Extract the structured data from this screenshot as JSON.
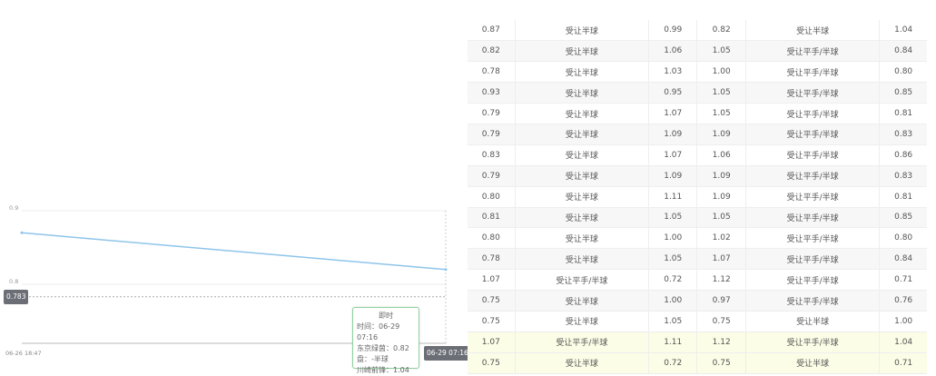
{
  "chart_data": {
    "type": "line",
    "x": [
      "06-26 18:47",
      "06-29 07:16"
    ],
    "values": [
      0.87,
      0.82
    ],
    "ylim": [
      0.75,
      0.9
    ],
    "yticks": [
      "0.9",
      "0.8"
    ],
    "xticks": [
      "06-26 18:47"
    ],
    "reference_line": "0.783",
    "cursor_x_label": "06-29 07:16",
    "line_color": "#8ec5ea",
    "grid": true,
    "tooltip": {
      "title": "即时",
      "lines": [
        "时间：06-29 07:16",
        "东京绿茵：0.82",
        "盘：-半球",
        "川崎前锋：1.04"
      ]
    }
  },
  "table": {
    "rows": [
      [
        "0.87",
        "受让半球",
        "0.99",
        "0.82",
        "受让半球",
        "1.04"
      ],
      [
        "0.82",
        "受让半球",
        "1.06",
        "1.05",
        "受让平手/半球",
        "0.84"
      ],
      [
        "0.78",
        "受让半球",
        "1.03",
        "1.00",
        "受让平手/半球",
        "0.80"
      ],
      [
        "0.93",
        "受让半球",
        "0.95",
        "1.05",
        "受让平手/半球",
        "0.85"
      ],
      [
        "0.79",
        "受让半球",
        "1.07",
        "1.05",
        "受让平手/半球",
        "0.81"
      ],
      [
        "0.79",
        "受让半球",
        "1.09",
        "1.09",
        "受让平手/半球",
        "0.83"
      ],
      [
        "0.83",
        "受让半球",
        "1.07",
        "1.06",
        "受让平手/半球",
        "0.86"
      ],
      [
        "0.79",
        "受让半球",
        "1.09",
        "1.09",
        "受让平手/半球",
        "0.83"
      ],
      [
        "0.80",
        "受让半球",
        "1.11",
        "1.09",
        "受让平手/半球",
        "0.81"
      ],
      [
        "0.81",
        "受让半球",
        "1.05",
        "1.05",
        "受让平手/半球",
        "0.85"
      ],
      [
        "0.80",
        "受让半球",
        "1.00",
        "1.02",
        "受让平手/半球",
        "0.80"
      ],
      [
        "0.78",
        "受让半球",
        "1.05",
        "1.07",
        "受让平手/半球",
        "0.84"
      ],
      [
        "1.07",
        "受让平手/半球",
        "0.72",
        "1.12",
        "受让平手/半球",
        "0.71"
      ],
      [
        "0.75",
        "受让半球",
        "1.00",
        "0.97",
        "受让平手/半球",
        "0.76"
      ],
      [
        "0.75",
        "受让半球",
        "1.05",
        "0.75",
        "受让半球",
        "1.00"
      ],
      [
        "1.07",
        "受让平手/半球",
        "1.11",
        "1.12",
        "受让平手/半球",
        "1.04"
      ],
      [
        "0.75",
        "受让半球",
        "0.72",
        "0.75",
        "受让半球",
        "0.71"
      ]
    ],
    "highlight_color": "#fbfde6"
  }
}
